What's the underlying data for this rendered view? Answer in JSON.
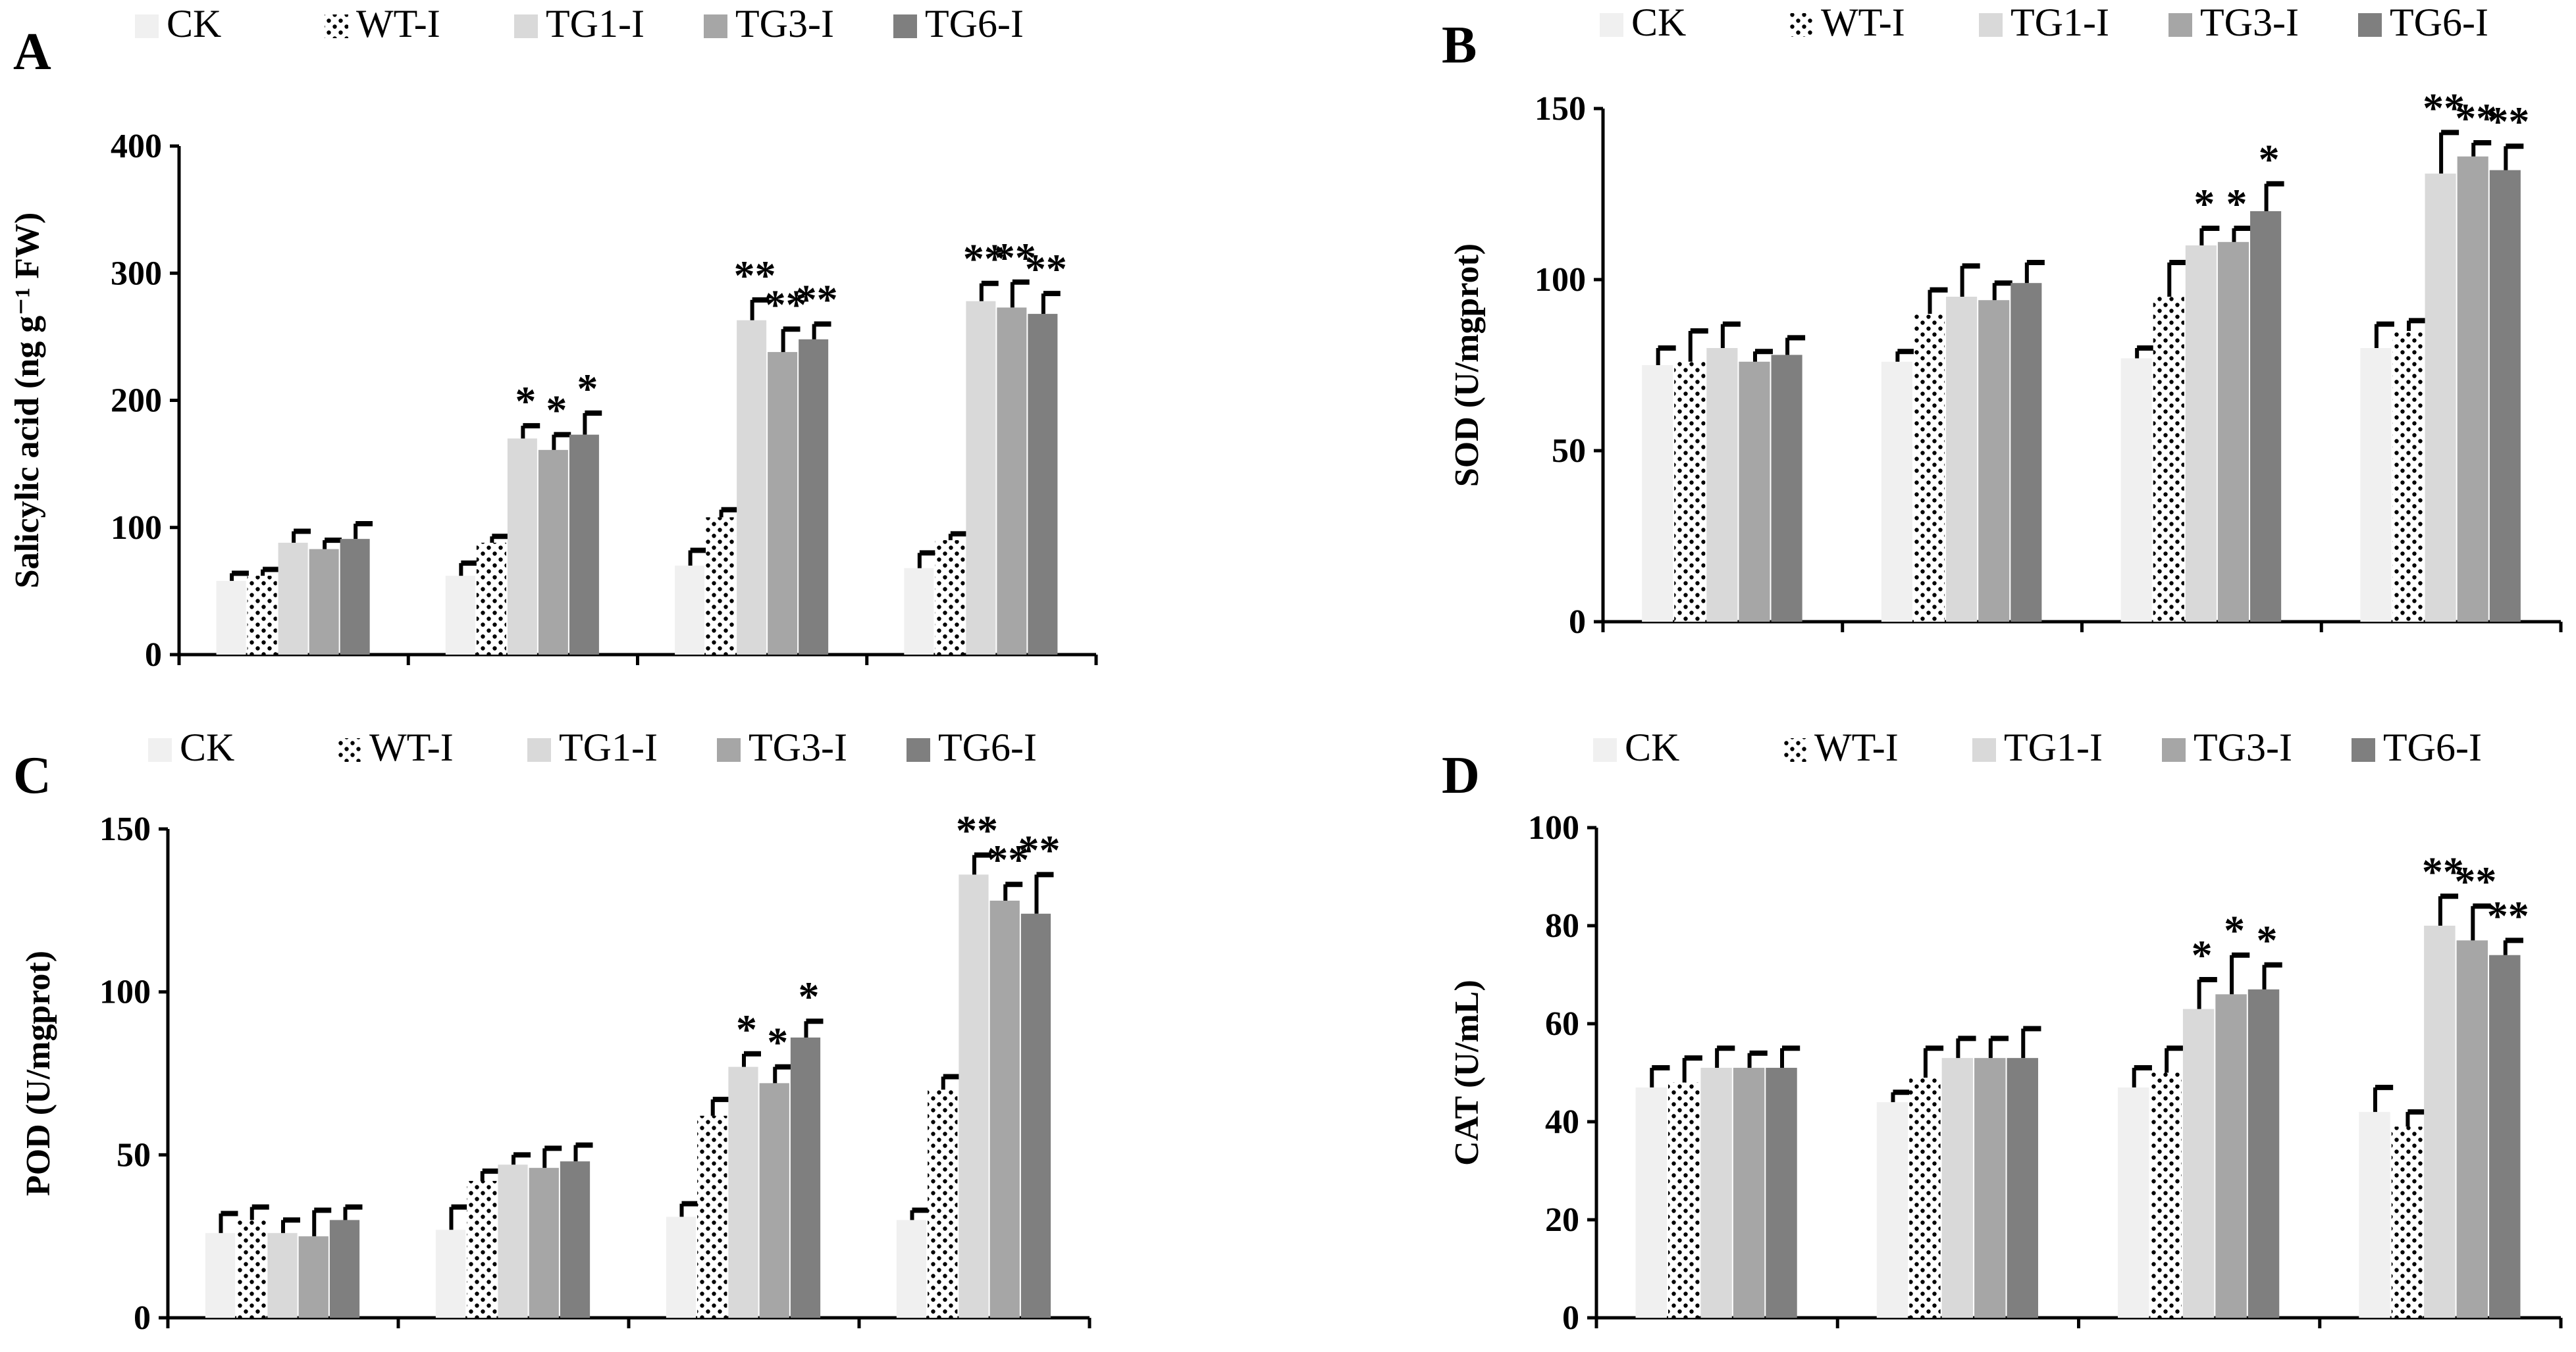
{
  "legend": {
    "labels": [
      "CK",
      "WT-I",
      "TG1-I",
      "TG3-I",
      "TG6-I"
    ]
  },
  "colors": {
    "CK": "#f0f0f0",
    "WT-I": "dotted",
    "TG1-I": "#d9d9d9",
    "TG3-I": "#a6a6a6",
    "TG6-I": "#7f7f7f"
  },
  "chart_data": [
    {
      "type": "bar",
      "panel": "A",
      "ylabel": "Salicylic acid (ng g⁻¹ FW)",
      "ylim": [
        0,
        400
      ],
      "yticks": [
        0,
        100,
        200,
        300,
        400
      ],
      "n_groups": 4,
      "series": [
        {
          "name": "CK",
          "values": [
            58,
            62,
            70,
            68
          ],
          "errors": [
            6,
            10,
            12,
            12
          ],
          "sig": [
            "",
            "",
            "",
            ""
          ]
        },
        {
          "name": "WT-I",
          "values": [
            62,
            88,
            108,
            90
          ],
          "errors": [
            5,
            5,
            6,
            5
          ],
          "sig": [
            "",
            "",
            "",
            ""
          ]
        },
        {
          "name": "TG1-I",
          "values": [
            88,
            170,
            263,
            278
          ],
          "errors": [
            9,
            10,
            16,
            14
          ],
          "sig": [
            "",
            "*",
            "**",
            "**"
          ]
        },
        {
          "name": "TG3-I",
          "values": [
            83,
            161,
            238,
            273
          ],
          "errors": [
            7,
            12,
            18,
            20
          ],
          "sig": [
            "",
            "*",
            "**",
            "**"
          ]
        },
        {
          "name": "TG6-I",
          "values": [
            91,
            173,
            248,
            268
          ],
          "errors": [
            12,
            17,
            12,
            16
          ],
          "sig": [
            "",
            "*",
            "**",
            "**"
          ]
        }
      ]
    },
    {
      "type": "bar",
      "panel": "B",
      "ylabel": "SOD (U/mgprot)",
      "ylim": [
        0,
        150
      ],
      "yticks": [
        0,
        50,
        100,
        150
      ],
      "n_groups": 4,
      "series": [
        {
          "name": "CK",
          "values": [
            75,
            76,
            77,
            80
          ],
          "errors": [
            5,
            3,
            3,
            7
          ],
          "sig": [
            "",
            "",
            "",
            ""
          ]
        },
        {
          "name": "WT-I",
          "values": [
            76,
            90,
            95,
            85
          ],
          "errors": [
            9,
            7,
            10,
            3
          ],
          "sig": [
            "",
            "",
            "",
            ""
          ]
        },
        {
          "name": "TG1-I",
          "values": [
            80,
            95,
            110,
            131
          ],
          "errors": [
            7,
            9,
            5,
            12
          ],
          "sig": [
            "",
            "",
            "*",
            "**"
          ]
        },
        {
          "name": "TG3-I",
          "values": [
            76,
            94,
            111,
            136
          ],
          "errors": [
            3,
            5,
            4,
            4
          ],
          "sig": [
            "",
            "",
            "*",
            "**"
          ]
        },
        {
          "name": "TG6-I",
          "values": [
            78,
            99,
            120,
            132
          ],
          "errors": [
            5,
            6,
            8,
            7
          ],
          "sig": [
            "",
            "",
            "*",
            "**"
          ]
        }
      ]
    },
    {
      "type": "bar",
      "panel": "C",
      "ylabel": "POD (U/mgprot)",
      "ylim": [
        0,
        150
      ],
      "yticks": [
        0,
        50,
        100,
        150
      ],
      "n_groups": 4,
      "series": [
        {
          "name": "CK",
          "values": [
            26,
            27,
            31,
            30
          ],
          "errors": [
            6,
            7,
            4,
            3
          ],
          "sig": [
            "",
            "",
            "",
            ""
          ]
        },
        {
          "name": "WT-I",
          "values": [
            30,
            42,
            62,
            70
          ],
          "errors": [
            4,
            3,
            5,
            4
          ],
          "sig": [
            "",
            "",
            "",
            ""
          ]
        },
        {
          "name": "TG1-I",
          "values": [
            26,
            47,
            77,
            136
          ],
          "errors": [
            4,
            3,
            4,
            6
          ],
          "sig": [
            "",
            "",
            "*",
            "**"
          ]
        },
        {
          "name": "TG3-I",
          "values": [
            25,
            46,
            72,
            128
          ],
          "errors": [
            8,
            6,
            5,
            5
          ],
          "sig": [
            "",
            "",
            "*",
            "**"
          ]
        },
        {
          "name": "TG6-I",
          "values": [
            30,
            48,
            86,
            124
          ],
          "errors": [
            4,
            5,
            5,
            12
          ],
          "sig": [
            "",
            "",
            "*",
            "**"
          ]
        }
      ]
    },
    {
      "type": "bar",
      "panel": "D",
      "ylabel": "CAT (U/mL)",
      "ylim": [
        0,
        100
      ],
      "yticks": [
        0,
        20,
        40,
        60,
        80,
        100
      ],
      "n_groups": 4,
      "series": [
        {
          "name": "CK",
          "values": [
            47,
            44,
            47,
            42
          ],
          "errors": [
            4,
            2,
            4,
            5
          ],
          "sig": [
            "",
            "",
            "",
            ""
          ]
        },
        {
          "name": "WT-I",
          "values": [
            48,
            49,
            50,
            39
          ],
          "errors": [
            5,
            6,
            5,
            3
          ],
          "sig": [
            "",
            "",
            "",
            ""
          ]
        },
        {
          "name": "TG1-I",
          "values": [
            51,
            53,
            63,
            80
          ],
          "errors": [
            4,
            4,
            6,
            6
          ],
          "sig": [
            "",
            "",
            "*",
            "**"
          ]
        },
        {
          "name": "TG3-I",
          "values": [
            51,
            53,
            66,
            77
          ],
          "errors": [
            3,
            4,
            8,
            7
          ],
          "sig": [
            "",
            "",
            "*",
            "**"
          ]
        },
        {
          "name": "TG6-I",
          "values": [
            51,
            53,
            67,
            74
          ],
          "errors": [
            4,
            6,
            5,
            3
          ],
          "sig": [
            "",
            "",
            "*",
            "**"
          ]
        }
      ]
    }
  ]
}
